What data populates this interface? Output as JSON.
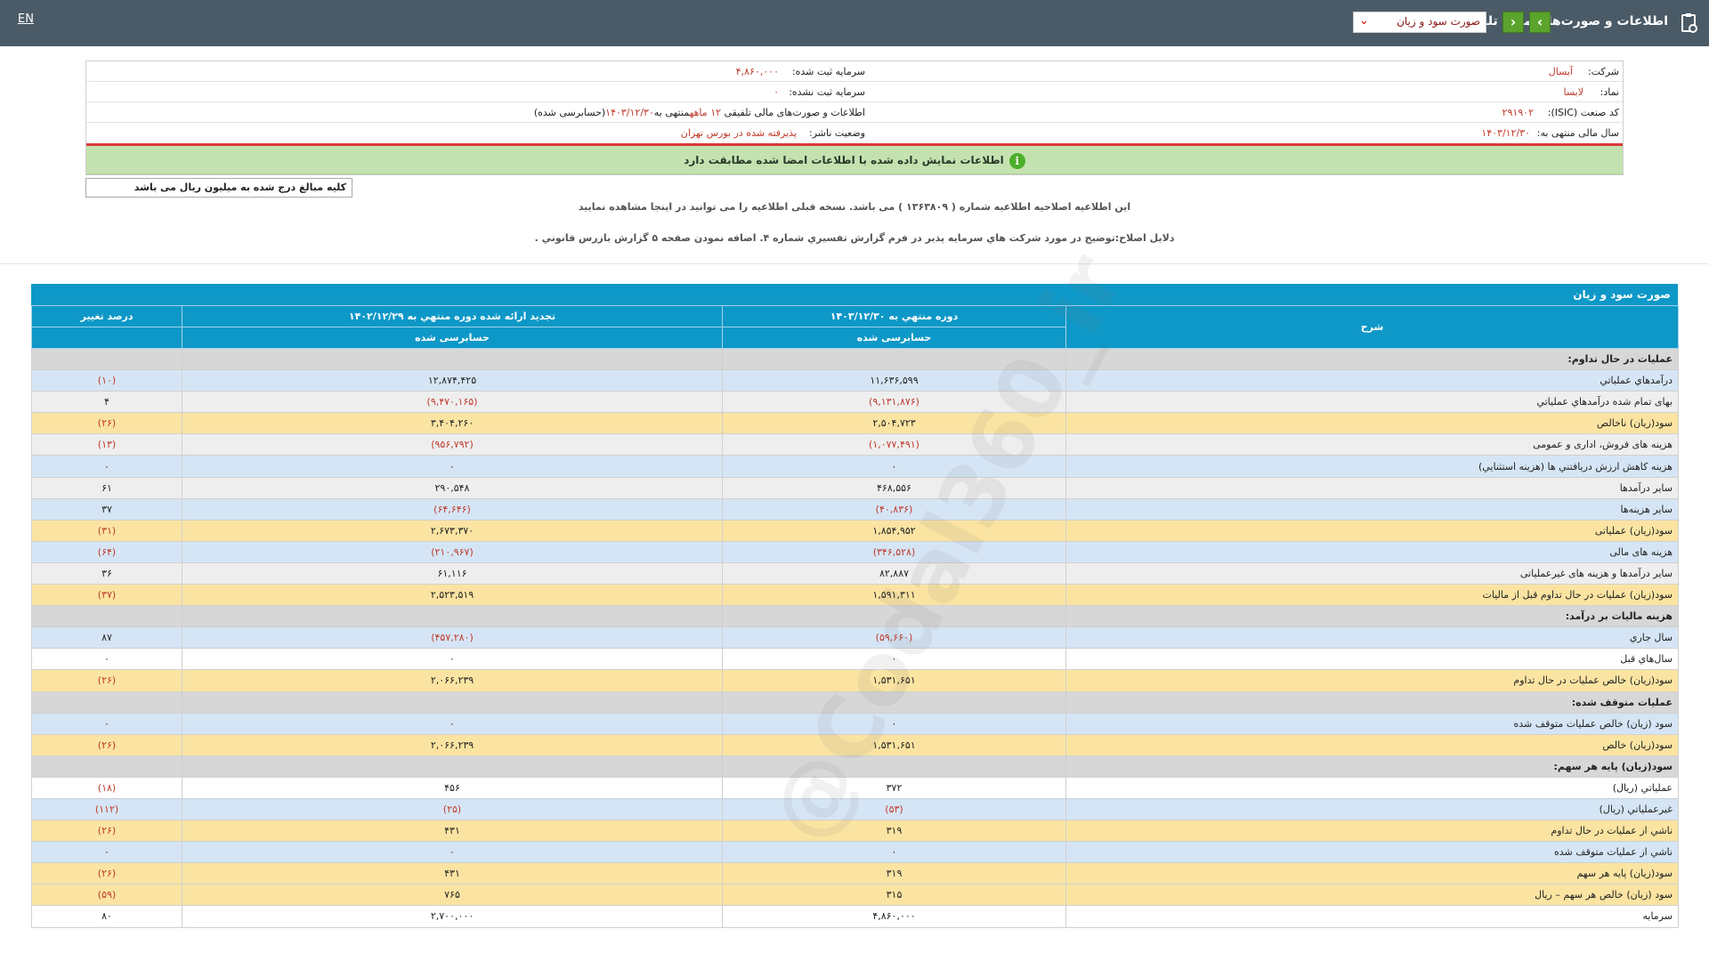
{
  "header": {
    "title": "اطلاعات و صورت‌های مالی تلفیقی",
    "report_select": "صورت سود و زیان",
    "lang_toggle": "EN"
  },
  "company_info": {
    "company_label": "شرکت:",
    "company_value": "آبسال",
    "symbol_label": "نماد:",
    "symbol_value": "لابسا",
    "isic_label": "کد صنعت (ISIC):",
    "isic_value": "۲۹۱۹۰۲",
    "fiscal_year_label": "سال مالی منتهی به:",
    "fiscal_year_value": "۱۴۰۳/۱۲/۳۰",
    "registered_capital_label": "سرمایه ثبت شده:",
    "registered_capital_value": "۴,۸۶۰,۰۰۰",
    "unregistered_capital_label": "سرمایه ثبت نشده:",
    "unregistered_capital_value": "۰",
    "statement_desc_prefix": "اطلاعات و صورت‌های مالی تلفیقی ",
    "statement_desc_period": "۱۲ ماهه",
    "statement_desc_end": "منتهی به",
    "statement_desc_date": "۱۴۰۳/۱۲/۳۰",
    "statement_desc_status": "(حسابرسی شده)",
    "publisher_status_label": "وضعیت ناشر:",
    "publisher_status_value": "پذیرفته شده در بورس تهران"
  },
  "match_banner": "اطلاعات نمایش داده شده با اطلاعات امضا شده مطابقت دارد",
  "unit_note": "کلیه مبالغ درج شده به میلیون ریال می باشد",
  "notice_line1": "این اطلاعیه اصلاحیه اطلاعیه شماره ( ۱۳۶۳۸۰۹ ) می باشد. نسخه قبلی اطلاعیه را می توانید در اینجا مشاهده نمایید",
  "notice_line2": "دلایل اصلاح:توضیح در مورد شرکت هاي سرمایه پذیر در فرم گزارش تفسیري شماره ۴. اضافه نمودن صفحه ۵ گزارش بازرس قانوني .",
  "watermark": "@Codal360_ir",
  "table": {
    "title": "صورت سود و زیان",
    "col_desc": "شرح",
    "col_current": "دوره منتهي به ۱۴۰۳/۱۲/۳۰",
    "col_previous": "تجدید ارائه شده دوره منتهي به ۱۴۰۲/۱۲/۲۹",
    "col_change": "درصد تغییر",
    "sub_current": "حسابرسی شده",
    "sub_previous": "حسابرسی شده",
    "rows": [
      {
        "type": "sect",
        "desc": "عملیات در حال تداوم:",
        "cur": "",
        "prev": "",
        "chg": ""
      },
      {
        "type": "blue",
        "desc": "درآمدهاي عملیاتي",
        "cur": "۱۱,۶۳۶,۵۹۹",
        "prev": "۱۲,۸۷۴,۴۲۵",
        "chg": "(۱۰)"
      },
      {
        "type": "gray",
        "desc": "بهاى تمام شده درآمدهاي عملیاتي",
        "cur": "(۹,۱۳۱,۸۷۶)",
        "prev": "(۹,۴۷۰,۱۶۵)",
        "chg": "۴"
      },
      {
        "type": "yellow",
        "desc": "سود(زيان) ناخالص",
        "cur": "۲,۵۰۴,۷۲۳",
        "prev": "۳,۴۰۴,۲۶۰",
        "chg": "(۲۶)"
      },
      {
        "type": "gray",
        "desc": "هزينه هاى فروش، ادارى و عمومى",
        "cur": "(۱,۰۷۷,۴۹۱)",
        "prev": "(۹۵۶,۷۹۲)",
        "chg": "(۱۳)"
      },
      {
        "type": "blue",
        "desc": "هزينه کاهش ارزش دريافتني ها (هزينه استثنايي)",
        "cur": "۰",
        "prev": "۰",
        "chg": "۰"
      },
      {
        "type": "gray",
        "desc": "ساير درآمدها",
        "cur": "۴۶۸,۵۵۶",
        "prev": "۲۹۰,۵۴۸",
        "chg": "۶۱"
      },
      {
        "type": "blue",
        "desc": "سایر هزینه‌ها",
        "cur": "(۴۰,۸۳۶)",
        "prev": "(۶۴,۶۴۶)",
        "chg": "۳۷"
      },
      {
        "type": "yellow",
        "desc": "سود(زيان) عملياتى",
        "cur": "۱,۸۵۴,۹۵۲",
        "prev": "۲,۶۷۳,۳۷۰",
        "chg": "(۳۱)"
      },
      {
        "type": "blue",
        "desc": "هزينه هاى مالى",
        "cur": "(۳۴۶,۵۲۸)",
        "prev": "(۲۱۰,۹۶۷)",
        "chg": "(۶۴)"
      },
      {
        "type": "gray",
        "desc": "ساير درآمدها و هزينه هاى غيرعملياتى",
        "cur": "۸۲,۸۸۷",
        "prev": "۶۱,۱۱۶",
        "chg": "۳۶"
      },
      {
        "type": "yellow",
        "desc": "سود(زيان) عمليات در حال تداوم قبل از ماليات",
        "cur": "۱,۵۹۱,۳۱۱",
        "prev": "۲,۵۲۳,۵۱۹",
        "chg": "(۳۷)"
      },
      {
        "type": "sect",
        "desc": "هزينه ماليات بر درآمد:",
        "cur": "",
        "prev": "",
        "chg": ""
      },
      {
        "type": "blue",
        "desc": "سال جاري",
        "cur": "(۵۹,۶۶۰)",
        "prev": "(۴۵۷,۲۸۰)",
        "chg": "۸۷"
      },
      {
        "type": "white",
        "desc": "سال‌هاي قبل",
        "cur": "۰",
        "prev": "۰",
        "chg": "۰"
      },
      {
        "type": "yellow",
        "desc": "سود(زيان) خالص عمليات در حال تداوم",
        "cur": "۱,۵۳۱,۶۵۱",
        "prev": "۲,۰۶۶,۲۳۹",
        "chg": "(۲۶)"
      },
      {
        "type": "sect",
        "desc": "عمليات متوقف شده:",
        "cur": "",
        "prev": "",
        "chg": ""
      },
      {
        "type": "blue",
        "desc": "سود (زيان) خالص عمليات متوقف شده",
        "cur": "۰",
        "prev": "۰",
        "chg": "۰"
      },
      {
        "type": "yellow",
        "desc": "سود(زيان) خالص",
        "cur": "۱,۵۳۱,۶۵۱",
        "prev": "۲,۰۶۶,۲۳۹",
        "chg": "(۲۶)"
      },
      {
        "type": "sect",
        "desc": "سود(زيان) پايه هر سهم:",
        "cur": "",
        "prev": "",
        "chg": ""
      },
      {
        "type": "white",
        "desc": "عملياتي (ريال)",
        "cur": "۳۷۲",
        "prev": "۴۵۶",
        "chg": "(۱۸)"
      },
      {
        "type": "blue",
        "desc": "غيرعملياتي (ريال)",
        "cur": "(۵۳)",
        "prev": "(۲۵)",
        "chg": "(۱۱۲)"
      },
      {
        "type": "yellow",
        "desc": "ناشي از عمليات در حال تداوم",
        "cur": "۳۱۹",
        "prev": "۴۳۱",
        "chg": "(۲۶)"
      },
      {
        "type": "blue",
        "desc": "ناشي از عمليات متوقف شده",
        "cur": "۰",
        "prev": "۰",
        "chg": "۰"
      },
      {
        "type": "yellow",
        "desc": "سود(زيان) پايه هر سهم",
        "cur": "۳۱۹",
        "prev": "۴۳۱",
        "chg": "(۲۶)"
      },
      {
        "type": "yellow",
        "desc": "سود (زيان) خالص هر سهم – ريال",
        "cur": "۳۱۵",
        "prev": "۷۶۵",
        "chg": "(۵۹)"
      },
      {
        "type": "white",
        "desc": "سرمایه",
        "cur": "۴,۸۶۰,۰۰۰",
        "prev": "۲,۷۰۰,۰۰۰",
        "chg": "۸۰"
      }
    ]
  },
  "colors": {
    "topbar": "#4a5a66",
    "table_header": "#0e98c7",
    "green_button": "#5aa32c",
    "match_banner": "#c4e2b0",
    "negative": "#c0392b"
  }
}
